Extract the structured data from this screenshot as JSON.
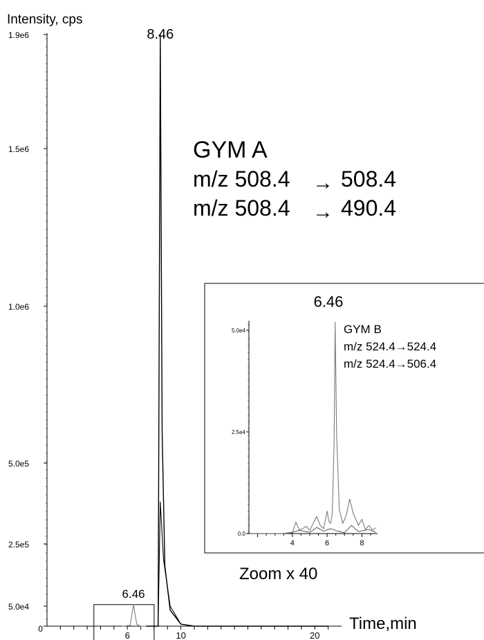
{
  "chart_data": [
    {
      "type": "line",
      "ylabel": "Intensity, cps",
      "xlabel": "Time,min",
      "y_ticks": [
        "0",
        "5.0e4",
        "2.5e5",
        "5.0e5",
        "1.0e6",
        "1.5e6",
        "1.9e6"
      ],
      "x_ticks": [
        "6",
        "10",
        "20"
      ],
      "xlim": [
        0,
        22
      ],
      "peak_labels": [
        {
          "label": "8.46",
          "x": 8.46,
          "y": 1900000
        },
        {
          "label": "6.46",
          "x": 6.46,
          "y": 55000
        }
      ],
      "annotation": {
        "compound": "GYM A",
        "transition1": "m/z 508.4",
        "transition1_product": "508.4",
        "transition2": "m/z 508.4",
        "transition2_product": "490.4",
        "arrow": "→"
      },
      "series": [
        {
          "values": [
            [
              7.4,
              0
            ],
            [
              8.3,
              0
            ],
            [
              8.46,
              1900000
            ],
            [
              8.6,
              600000
            ],
            [
              8.8,
              180000
            ],
            [
              9.2,
              40000
            ],
            [
              10,
              5000
            ],
            [
              11,
              0
            ],
            [
              21,
              0
            ]
          ]
        },
        {
          "values": [
            [
              7.4,
              0
            ],
            [
              8.3,
              0
            ],
            [
              8.46,
              380000
            ],
            [
              8.7,
              200000
            ],
            [
              9.2,
              50000
            ],
            [
              10,
              5000
            ],
            [
              11,
              0
            ],
            [
              21,
              0
            ]
          ]
        },
        {
          "values": [
            [
              5.6,
              0
            ],
            [
              6.2,
              2000
            ],
            [
              6.46,
              55000
            ],
            [
              6.7,
              5000
            ],
            [
              7.0,
              0
            ],
            [
              7.4,
              0
            ]
          ]
        }
      ],
      "zoom_region": {
        "x": [
          3.5,
          8.0
        ],
        "y": [
          0,
          55000
        ]
      }
    },
    {
      "type": "line",
      "inset": true,
      "caption": "Zoom x 40",
      "y_ticks": [
        "0.0",
        "2.5e4",
        "5.0e4"
      ],
      "x_ticks": [
        "4",
        "6",
        "8"
      ],
      "xlim": [
        1.5,
        8.9
      ],
      "ylim": [
        0,
        52000
      ],
      "peak_labels": [
        {
          "label": "6.46",
          "x": 6.46,
          "y": 52000
        }
      ],
      "annotation": {
        "compound": "GYM B",
        "transition1": "m/z 524.4→524.4",
        "transition2": "m/z 524.4→506.4"
      },
      "series": [
        {
          "values": [
            [
              1.6,
              0
            ],
            [
              2.0,
              0
            ],
            [
              2.8,
              0
            ],
            [
              3.5,
              0
            ],
            [
              4.0,
              200
            ],
            [
              4.2,
              2800
            ],
            [
              4.4,
              900
            ],
            [
              4.6,
              1200
            ],
            [
              4.8,
              1800
            ],
            [
              5.0,
              800
            ],
            [
              5.2,
              2500
            ],
            [
              5.4,
              4200
            ],
            [
              5.6,
              2000
            ],
            [
              5.8,
              1200
            ],
            [
              6.0,
              5500
            ],
            [
              6.1,
              3000
            ],
            [
              6.2,
              2500
            ],
            [
              6.3,
              5000
            ],
            [
              6.4,
              22000
            ],
            [
              6.46,
              52000
            ],
            [
              6.55,
              24000
            ],
            [
              6.7,
              6000
            ],
            [
              6.9,
              2500
            ],
            [
              7.1,
              4500
            ],
            [
              7.3,
              8500
            ],
            [
              7.5,
              5000
            ],
            [
              7.8,
              2000
            ],
            [
              8.0,
              3500
            ],
            [
              8.2,
              1000
            ],
            [
              8.4,
              2000
            ],
            [
              8.6,
              900
            ],
            [
              8.8,
              1400
            ]
          ]
        },
        {
          "values": [
            [
              1.6,
              0
            ],
            [
              3.5,
              0
            ],
            [
              4.0,
              300
            ],
            [
              4.4,
              800
            ],
            [
              5.0,
              300
            ],
            [
              5.4,
              1500
            ],
            [
              5.8,
              600
            ],
            [
              6.2,
              1200
            ],
            [
              6.6,
              600
            ],
            [
              7.0,
              200
            ],
            [
              7.4,
              2000
            ],
            [
              7.8,
              500
            ],
            [
              8.4,
              1000
            ],
            [
              8.8,
              300
            ]
          ]
        }
      ]
    }
  ]
}
